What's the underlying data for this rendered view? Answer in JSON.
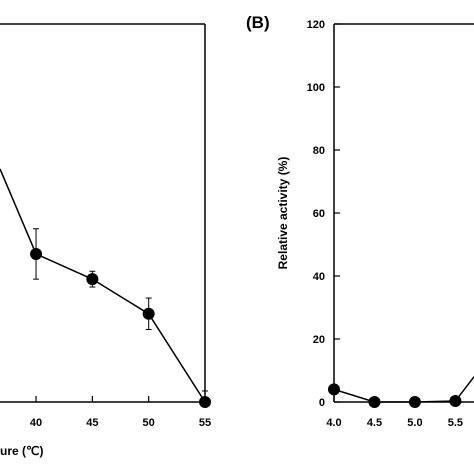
{
  "chart_data": [
    {
      "type": "line",
      "panel_label": "",
      "xlabel": "ure (℃)",
      "ylabel": "",
      "x_ticks": [
        "40",
        "45",
        "50",
        "55"
      ],
      "xlim": [
        36.8,
        55
      ],
      "ylim": [
        0,
        120
      ],
      "series": [
        {
          "name": "",
          "x": [
            36.8,
            40,
            45,
            50,
            55
          ],
          "y": [
            74,
            47,
            39,
            28,
            0
          ],
          "err": [
            null,
            8,
            2.5,
            5,
            3.5
          ]
        }
      ],
      "grid": false,
      "legend": "none"
    },
    {
      "type": "line",
      "panel_label": "(B)",
      "xlabel": "",
      "ylabel": "Relative activity (%)",
      "x_ticks": [
        "4.0",
        "4.5",
        "5.0",
        "5.5"
      ],
      "y_ticks": [
        "0",
        "20",
        "40",
        "60",
        "80",
        "100",
        "120"
      ],
      "xlim": [
        4.0,
        5.73
      ],
      "ylim": [
        0,
        120
      ],
      "series": [
        {
          "name": "",
          "x": [
            4.0,
            4.5,
            5.0,
            5.5,
            5.73
          ],
          "y": [
            4,
            0,
            0,
            0.3,
            8
          ]
        }
      ],
      "grid": false,
      "legend": "none"
    }
  ]
}
